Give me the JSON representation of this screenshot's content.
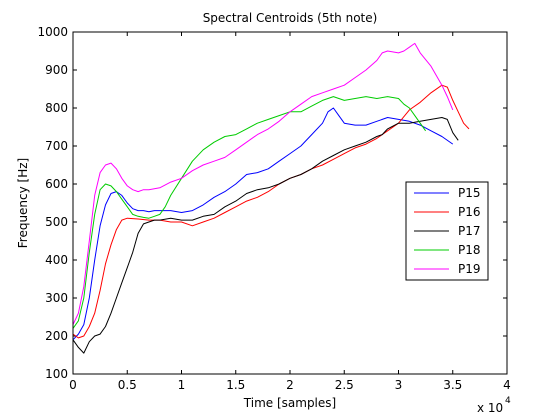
{
  "chart_data": {
    "type": "line",
    "title": "Spectral Centroids (5th note)",
    "xlabel": "Time [samples]",
    "ylabel": "Frequency [Hz]",
    "x_multiplier_label": "x 10",
    "x_multiplier_exponent": "4",
    "xlim": [
      0,
      40000
    ],
    "ylim": [
      100,
      1000
    ],
    "xticks": [
      0,
      5000,
      10000,
      15000,
      20000,
      25000,
      30000,
      35000,
      40000
    ],
    "xtick_labels": [
      "0",
      "0.5",
      "1",
      "1.5",
      "2",
      "2.5",
      "3",
      "3.5",
      "4"
    ],
    "yticks": [
      100,
      200,
      300,
      400,
      500,
      600,
      700,
      800,
      900,
      1000
    ],
    "ytick_labels": [
      "100",
      "200",
      "300",
      "400",
      "500",
      "600",
      "700",
      "800",
      "900",
      "1000"
    ],
    "grid": false,
    "legend_position": "right",
    "series": [
      {
        "name": "P15",
        "color": "#0000ff",
        "points": [
          [
            0,
            190
          ],
          [
            500,
            205
          ],
          [
            1000,
            230
          ],
          [
            1500,
            300
          ],
          [
            2000,
            400
          ],
          [
            2500,
            490
          ],
          [
            3000,
            545
          ],
          [
            3500,
            575
          ],
          [
            4000,
            580
          ],
          [
            4500,
            570
          ],
          [
            5000,
            550
          ],
          [
            5500,
            535
          ],
          [
            6000,
            530
          ],
          [
            6500,
            530
          ],
          [
            7000,
            527
          ],
          [
            7500,
            530
          ],
          [
            8000,
            530
          ],
          [
            9000,
            530
          ],
          [
            10000,
            525
          ],
          [
            11000,
            530
          ],
          [
            12000,
            545
          ],
          [
            13000,
            565
          ],
          [
            14000,
            580
          ],
          [
            15000,
            600
          ],
          [
            16000,
            625
          ],
          [
            17000,
            630
          ],
          [
            18000,
            640
          ],
          [
            19000,
            660
          ],
          [
            20000,
            680
          ],
          [
            21000,
            700
          ],
          [
            22000,
            730
          ],
          [
            23000,
            760
          ],
          [
            23500,
            790
          ],
          [
            24000,
            800
          ],
          [
            24500,
            780
          ],
          [
            25000,
            760
          ],
          [
            26000,
            755
          ],
          [
            27000,
            755
          ],
          [
            28000,
            765
          ],
          [
            29000,
            775
          ],
          [
            30000,
            770
          ],
          [
            31000,
            765
          ],
          [
            32000,
            755
          ],
          [
            33000,
            740
          ],
          [
            34000,
            725
          ],
          [
            35000,
            705
          ]
        ]
      },
      {
        "name": "P16",
        "color": "#ff0000",
        "points": [
          [
            0,
            205
          ],
          [
            500,
            195
          ],
          [
            1000,
            200
          ],
          [
            1500,
            225
          ],
          [
            2000,
            260
          ],
          [
            2500,
            320
          ],
          [
            3000,
            390
          ],
          [
            3500,
            440
          ],
          [
            4000,
            480
          ],
          [
            4500,
            505
          ],
          [
            5000,
            510
          ],
          [
            6000,
            508
          ],
          [
            7000,
            505
          ],
          [
            8000,
            505
          ],
          [
            9000,
            500
          ],
          [
            10000,
            500
          ],
          [
            11000,
            490
          ],
          [
            12000,
            500
          ],
          [
            13000,
            510
          ],
          [
            14000,
            525
          ],
          [
            15000,
            540
          ],
          [
            16000,
            555
          ],
          [
            17000,
            565
          ],
          [
            18000,
            580
          ],
          [
            19000,
            600
          ],
          [
            20000,
            615
          ],
          [
            21000,
            625
          ],
          [
            22000,
            640
          ],
          [
            23000,
            650
          ],
          [
            24000,
            665
          ],
          [
            25000,
            680
          ],
          [
            26000,
            695
          ],
          [
            27000,
            705
          ],
          [
            28000,
            720
          ],
          [
            29000,
            740
          ],
          [
            30000,
            760
          ],
          [
            31000,
            795
          ],
          [
            32000,
            815
          ],
          [
            33000,
            840
          ],
          [
            34000,
            860
          ],
          [
            34500,
            855
          ],
          [
            35000,
            820
          ],
          [
            35500,
            790
          ],
          [
            36000,
            760
          ],
          [
            36500,
            745
          ]
        ]
      },
      {
        "name": "P17",
        "color": "#000000",
        "points": [
          [
            0,
            190
          ],
          [
            500,
            170
          ],
          [
            1000,
            155
          ],
          [
            1500,
            185
          ],
          [
            2000,
            200
          ],
          [
            2500,
            205
          ],
          [
            3000,
            225
          ],
          [
            3500,
            260
          ],
          [
            4000,
            300
          ],
          [
            4500,
            340
          ],
          [
            5000,
            380
          ],
          [
            5500,
            420
          ],
          [
            6000,
            470
          ],
          [
            6500,
            495
          ],
          [
            7000,
            500
          ],
          [
            7500,
            505
          ],
          [
            8000,
            505
          ],
          [
            9000,
            510
          ],
          [
            10000,
            505
          ],
          [
            11000,
            505
          ],
          [
            12000,
            515
          ],
          [
            13000,
            520
          ],
          [
            14000,
            540
          ],
          [
            15000,
            555
          ],
          [
            16000,
            575
          ],
          [
            17000,
            585
          ],
          [
            18000,
            590
          ],
          [
            19000,
            600
          ],
          [
            20000,
            615
          ],
          [
            21000,
            625
          ],
          [
            22000,
            640
          ],
          [
            23000,
            660
          ],
          [
            24000,
            675
          ],
          [
            25000,
            690
          ],
          [
            26000,
            700
          ],
          [
            27000,
            710
          ],
          [
            28000,
            725
          ],
          [
            28500,
            730
          ],
          [
            29000,
            745
          ],
          [
            30000,
            760
          ],
          [
            31000,
            760
          ],
          [
            32000,
            765
          ],
          [
            33000,
            770
          ],
          [
            34000,
            775
          ],
          [
            34500,
            770
          ],
          [
            35000,
            735
          ],
          [
            35500,
            715
          ]
        ]
      },
      {
        "name": "P18",
        "color": "#00cc00",
        "points": [
          [
            0,
            220
          ],
          [
            500,
            240
          ],
          [
            1000,
            300
          ],
          [
            1500,
            420
          ],
          [
            2000,
            520
          ],
          [
            2500,
            585
          ],
          [
            3000,
            600
          ],
          [
            3500,
            595
          ],
          [
            4000,
            580
          ],
          [
            4500,
            560
          ],
          [
            5000,
            540
          ],
          [
            5500,
            520
          ],
          [
            6000,
            515
          ],
          [
            6500,
            512
          ],
          [
            7000,
            510
          ],
          [
            7500,
            515
          ],
          [
            8000,
            520
          ],
          [
            8500,
            540
          ],
          [
            9000,
            570
          ],
          [
            10000,
            615
          ],
          [
            11000,
            660
          ],
          [
            12000,
            690
          ],
          [
            13000,
            710
          ],
          [
            14000,
            725
          ],
          [
            15000,
            730
          ],
          [
            16000,
            745
          ],
          [
            17000,
            760
          ],
          [
            18000,
            770
          ],
          [
            19000,
            780
          ],
          [
            20000,
            790
          ],
          [
            21000,
            790
          ],
          [
            22000,
            805
          ],
          [
            23000,
            820
          ],
          [
            24000,
            830
          ],
          [
            25000,
            820
          ],
          [
            26000,
            825
          ],
          [
            27000,
            830
          ],
          [
            28000,
            825
          ],
          [
            29000,
            830
          ],
          [
            30000,
            825
          ],
          [
            30500,
            810
          ],
          [
            31000,
            800
          ],
          [
            31500,
            780
          ],
          [
            32000,
            760
          ],
          [
            32500,
            740
          ]
        ]
      },
      {
        "name": "P19",
        "color": "#ff00ff",
        "points": [
          [
            0,
            230
          ],
          [
            500,
            260
          ],
          [
            1000,
            330
          ],
          [
            1500,
            450
          ],
          [
            2000,
            570
          ],
          [
            2500,
            630
          ],
          [
            3000,
            650
          ],
          [
            3500,
            655
          ],
          [
            4000,
            640
          ],
          [
            4500,
            615
          ],
          [
            5000,
            595
          ],
          [
            5500,
            585
          ],
          [
            6000,
            580
          ],
          [
            6500,
            585
          ],
          [
            7000,
            585
          ],
          [
            8000,
            590
          ],
          [
            9000,
            605
          ],
          [
            10000,
            615
          ],
          [
            11000,
            635
          ],
          [
            12000,
            650
          ],
          [
            13000,
            660
          ],
          [
            14000,
            670
          ],
          [
            15000,
            690
          ],
          [
            16000,
            710
          ],
          [
            17000,
            730
          ],
          [
            18000,
            745
          ],
          [
            19000,
            765
          ],
          [
            20000,
            790
          ],
          [
            21000,
            810
          ],
          [
            22000,
            830
          ],
          [
            23000,
            840
          ],
          [
            24000,
            850
          ],
          [
            25000,
            860
          ],
          [
            26000,
            880
          ],
          [
            27000,
            900
          ],
          [
            28000,
            925
          ],
          [
            28500,
            945
          ],
          [
            29000,
            950
          ],
          [
            30000,
            945
          ],
          [
            30500,
            950
          ],
          [
            31000,
            960
          ],
          [
            31500,
            970
          ],
          [
            32000,
            945
          ],
          [
            33000,
            910
          ],
          [
            34000,
            860
          ],
          [
            34500,
            830
          ],
          [
            35000,
            795
          ]
        ]
      }
    ]
  }
}
